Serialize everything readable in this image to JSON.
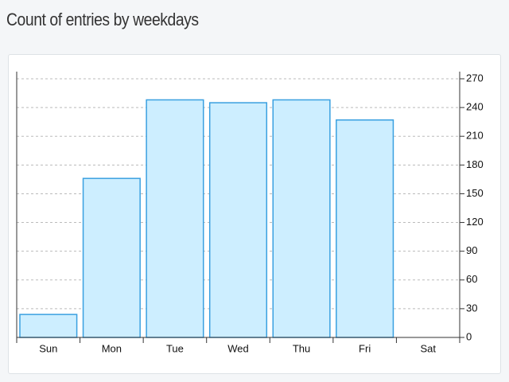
{
  "chart_data": {
    "type": "bar",
    "title": "Count of entries by weekdays",
    "categories": [
      "Sun",
      "Mon",
      "Tue",
      "Wed",
      "Thu",
      "Fri",
      "Sat"
    ],
    "values": [
      24,
      166,
      248,
      245,
      248,
      227,
      0
    ],
    "color": "#cdeeff",
    "edge_color": "#3aa0e0",
    "ylim": [
      0,
      270
    ],
    "yticks": [
      0,
      30,
      60,
      90,
      120,
      150,
      180,
      210,
      240,
      270
    ],
    "grid": true
  }
}
